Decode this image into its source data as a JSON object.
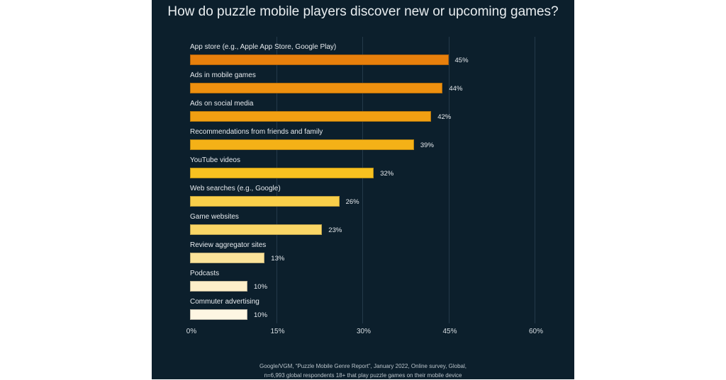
{
  "chart_data": {
    "type": "bar",
    "orientation": "horizontal",
    "title": "How do puzzle mobile players discover new or upcoming games?",
    "categories": [
      "App store (e.g., Apple App Store, Google Play)",
      "Ads in mobile games",
      "Ads on social media",
      "Recommendations from friends and family",
      "YouTube videos",
      "Web searches (e.g., Google)",
      "Game websites",
      "Review aggregator sites",
      "Podcasts",
      "Commuter advertising"
    ],
    "values": [
      45,
      44,
      42,
      39,
      32,
      26,
      23,
      13,
      10,
      10
    ],
    "value_labels": [
      "45%",
      "44%",
      "42%",
      "39%",
      "32%",
      "26%",
      "23%",
      "13%",
      "10%",
      "10%"
    ],
    "bar_colors": [
      "#e8800c",
      "#ee900f",
      "#f19f12",
      "#f4b117",
      "#f7c120",
      "#f9cf4a",
      "#fad666",
      "#fbe39a",
      "#fdefc9",
      "#fef6e2"
    ],
    "xlim": [
      0,
      60
    ],
    "xticks": [
      0,
      15,
      30,
      45,
      60
    ],
    "xtick_labels": [
      "0%",
      "15%",
      "30%",
      "45%",
      "60%"
    ],
    "grid": true,
    "xlabel": "",
    "ylabel": ""
  },
  "source": {
    "line1": "Google/VGM, “Puzzle Mobile Genre Report”, January 2022, Online survey, Global,",
    "line2": "n=6,993 global respondents 18+ that play puzzle games on their mobile device"
  },
  "colors": {
    "panel_background": "#0c1f2c",
    "text": "#e6eaee"
  }
}
